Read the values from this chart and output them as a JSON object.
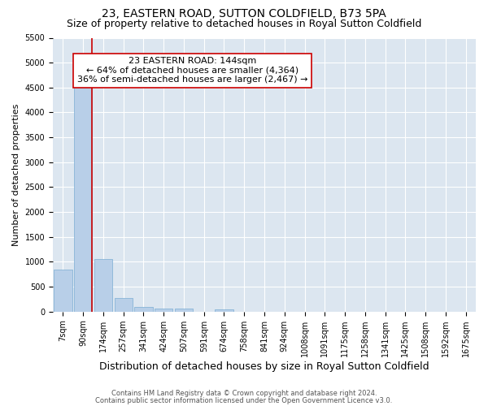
{
  "title": "23, EASTERN ROAD, SUTTON COLDFIELD, B73 5PA",
  "subtitle": "Size of property relative to detached houses in Royal Sutton Coldfield",
  "xlabel": "Distribution of detached houses by size in Royal Sutton Coldfield",
  "ylabel": "Number of detached properties",
  "footnote1": "Contains HM Land Registry data © Crown copyright and database right 2024.",
  "footnote2": "Contains public sector information licensed under the Open Government Licence v3.0.",
  "bar_labels": [
    "7sqm",
    "90sqm",
    "174sqm",
    "257sqm",
    "341sqm",
    "424sqm",
    "507sqm",
    "591sqm",
    "674sqm",
    "758sqm",
    "841sqm",
    "924sqm",
    "1008sqm",
    "1091sqm",
    "1175sqm",
    "1258sqm",
    "1341sqm",
    "1425sqm",
    "1508sqm",
    "1592sqm",
    "1675sqm"
  ],
  "bar_values": [
    850,
    4700,
    1050,
    275,
    90,
    65,
    55,
    0,
    50,
    0,
    0,
    0,
    0,
    0,
    0,
    0,
    0,
    0,
    0,
    0,
    0
  ],
  "bar_color": "#b8cfe8",
  "bar_edge_color": "#7aadd4",
  "vline_color": "#cc0000",
  "annotation_text": "23 EASTERN ROAD: 144sqm\n← 64% of detached houses are smaller (4,364)\n36% of semi-detached houses are larger (2,467) →",
  "annotation_box_color": "#ffffff",
  "annotation_box_edge_color": "#cc0000",
  "ylim_max": 5500,
  "yticks": [
    0,
    500,
    1000,
    1500,
    2000,
    2500,
    3000,
    3500,
    4000,
    4500,
    5000,
    5500
  ],
  "plot_bg_color": "#dce6f0",
  "grid_color": "#ffffff",
  "title_fontsize": 10,
  "subtitle_fontsize": 9,
  "annotation_fontsize": 8,
  "tick_fontsize": 7,
  "ylabel_fontsize": 8,
  "xlabel_fontsize": 9,
  "footnote_fontsize": 6
}
